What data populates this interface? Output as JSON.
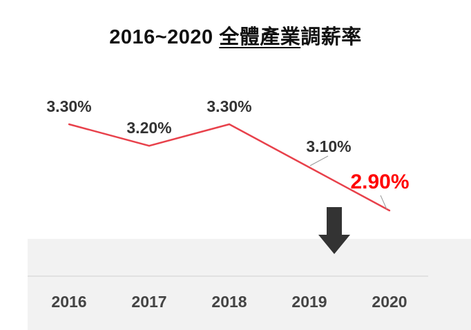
{
  "title": {
    "year_range": "2016~2020",
    "underlined": "全體產業",
    "rest": "調薪率"
  },
  "chart_data": {
    "type": "line",
    "title": "2016~2020 全體產業調薪率",
    "categories": [
      "2016",
      "2017",
      "2018",
      "2019",
      "2020"
    ],
    "series": [
      {
        "values": [
          3.3,
          3.2,
          3.3,
          3.1,
          2.9
        ]
      }
    ],
    "data_labels": [
      "3.30%",
      "3.20%",
      "3.30%",
      "3.10%",
      "2.90%"
    ],
    "highlight_label_index": 4,
    "ylim": [
      2.8,
      3.4
    ],
    "grid": false,
    "colors": {
      "line": "#e8414b",
      "highlight_label": "#ff0000",
      "label": "#333333",
      "axis": "#d0d0d0",
      "arrow": "#333333",
      "band": "#f2f2f2"
    }
  },
  "annotations": {
    "arrow": "down-arrow-icon"
  }
}
